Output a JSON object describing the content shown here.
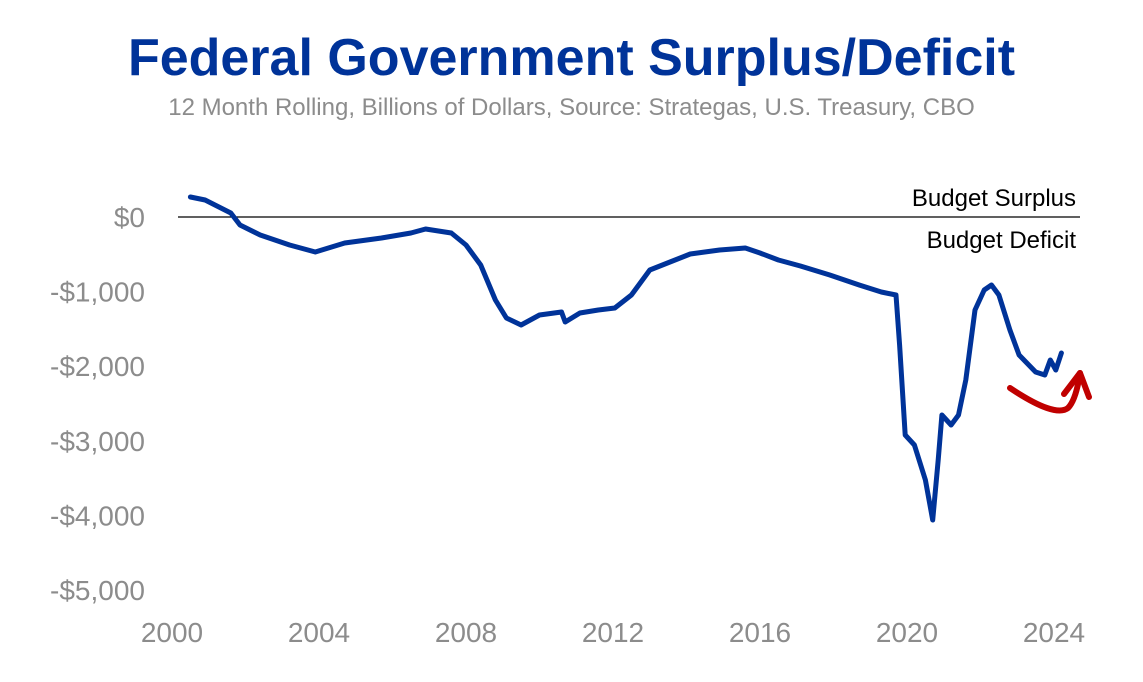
{
  "chart_data": {
    "type": "line",
    "title": "Federal Government Surplus/Deficit",
    "subtitle": "12 Month Rolling, Billions of Dollars, Source: Strategas, U.S. Treasury, CBO",
    "xlabel": "",
    "ylabel": "",
    "xlim": [
      2000,
      2024.6
    ],
    "ylim": [
      -5000,
      500
    ],
    "x_ticks": [
      2000,
      2004,
      2008,
      2012,
      2016,
      2020,
      2024
    ],
    "x_tick_labels": [
      "2000",
      "2004",
      "2008",
      "2012",
      "2016",
      "2020",
      "2024"
    ],
    "y_ticks": [
      0,
      -1000,
      -2000,
      -3000,
      -4000,
      -5000
    ],
    "y_tick_labels": [
      "$0",
      "-$1,000",
      "-$2,000",
      "-$3,000",
      "-$4,000",
      "-$5,000"
    ],
    "grid": false,
    "annotations": [
      "Budget Surplus",
      "Budget Deficit"
    ],
    "reference_line": 0,
    "colors": {
      "series": "#003399",
      "arrow": "#c00000",
      "zero_line": "#000000"
    },
    "series": [
      {
        "x": [
          2000.5,
          2000.9,
          2001.6,
          2001.85,
          2002.4,
          2003.2,
          2003.9,
          2004.7,
          2005.7,
          2006.5,
          2006.9,
          2007.6,
          2008.0,
          2008.4,
          2008.8,
          2009.1,
          2009.5,
          2010.0,
          2010.6,
          2010.7,
          2011.1,
          2011.6,
          2012.05,
          2012.5,
          2013.0,
          2013.55,
          2014.1,
          2014.9,
          2015.6,
          2016.0,
          2016.5,
          2017.1,
          2017.9,
          2018.7,
          2019.3,
          2019.7,
          2019.8,
          2019.95,
          2020.2,
          2020.5,
          2020.7,
          2020.85,
          2020.95,
          2021.2,
          2021.4,
          2021.6,
          2021.85,
          2022.1,
          2022.3,
          2022.5,
          2022.8,
          2023.05,
          2023.5,
          2023.75,
          2023.9,
          2024.05,
          2024.2
        ],
        "y": [
          268,
          228,
          54,
          -107,
          -241,
          -375,
          -469,
          -349,
          -282,
          -214,
          -161,
          -214,
          -375,
          -643,
          -1113,
          -1354,
          -1448,
          -1314,
          -1273,
          -1407,
          -1287,
          -1247,
          -1220,
          -1046,
          -710,
          -603,
          -496,
          -442,
          -416,
          -483,
          -576,
          -657,
          -777,
          -912,
          -1005,
          -1046,
          -1716,
          -2922,
          -3056,
          -3525,
          -4062,
          -3257,
          -2654,
          -2788,
          -2654,
          -2185,
          -1247,
          -979,
          -912,
          -1046,
          -1515,
          -1850,
          -2078,
          -2118,
          -1917,
          -2051,
          -1823
        ]
      }
    ]
  }
}
